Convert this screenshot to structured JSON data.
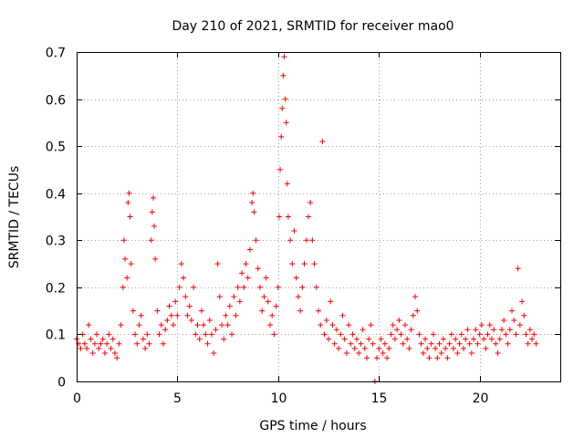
{
  "chart_data": {
    "type": "scatter",
    "title": "Day 210 of 2021, SRMTID for receiver mao0",
    "xlabel": "GPS time / hours",
    "ylabel": "SRMTID / TECUs",
    "xlim": [
      0,
      24
    ],
    "ylim": [
      0,
      0.7
    ],
    "xticks": [
      0,
      5,
      10,
      15,
      20
    ],
    "xtick_labels": [
      "0",
      "5",
      "10",
      "15",
      "20"
    ],
    "yticks": [
      0,
      0.1,
      0.2,
      0.3,
      0.4,
      0.5,
      0.6,
      0.7
    ],
    "ytick_labels": [
      "0",
      "0.1",
      "0.2",
      "0.3",
      "0.4",
      "0.5",
      "0.6",
      "0.7"
    ],
    "grid": true,
    "marker": "+",
    "color": "#ff0000",
    "series": [
      {
        "name": "SRMTID",
        "points": [
          [
            0.0,
            0.09
          ],
          [
            0.1,
            0.08
          ],
          [
            0.2,
            0.07
          ],
          [
            0.3,
            0.1
          ],
          [
            0.4,
            0.08
          ],
          [
            0.5,
            0.07
          ],
          [
            0.6,
            0.12
          ],
          [
            0.7,
            0.09
          ],
          [
            0.8,
            0.06
          ],
          [
            0.9,
            0.08
          ],
          [
            1.0,
            0.1
          ],
          [
            1.1,
            0.07
          ],
          [
            1.2,
            0.08
          ],
          [
            1.3,
            0.09
          ],
          [
            1.4,
            0.06
          ],
          [
            1.5,
            0.08
          ],
          [
            1.6,
            0.1
          ],
          [
            1.7,
            0.07
          ],
          [
            1.8,
            0.09
          ],
          [
            1.9,
            0.06
          ],
          [
            2.0,
            0.05
          ],
          [
            2.1,
            0.08
          ],
          [
            2.2,
            0.12
          ],
          [
            2.3,
            0.2
          ],
          [
            2.35,
            0.3
          ],
          [
            2.4,
            0.26
          ],
          [
            2.5,
            0.22
          ],
          [
            2.55,
            0.38
          ],
          [
            2.6,
            0.4
          ],
          [
            2.65,
            0.35
          ],
          [
            2.7,
            0.25
          ],
          [
            2.8,
            0.15
          ],
          [
            2.9,
            0.1
          ],
          [
            3.0,
            0.08
          ],
          [
            3.1,
            0.12
          ],
          [
            3.2,
            0.14
          ],
          [
            3.3,
            0.09
          ],
          [
            3.4,
            0.07
          ],
          [
            3.5,
            0.1
          ],
          [
            3.6,
            0.08
          ],
          [
            3.7,
            0.3
          ],
          [
            3.75,
            0.36
          ],
          [
            3.8,
            0.39
          ],
          [
            3.85,
            0.33
          ],
          [
            3.9,
            0.26
          ],
          [
            4.0,
            0.15
          ],
          [
            4.1,
            0.1
          ],
          [
            4.2,
            0.12
          ],
          [
            4.3,
            0.08
          ],
          [
            4.4,
            0.11
          ],
          [
            4.5,
            0.13
          ],
          [
            4.6,
            0.16
          ],
          [
            4.7,
            0.14
          ],
          [
            4.8,
            0.12
          ],
          [
            4.9,
            0.17
          ],
          [
            5.0,
            0.14
          ],
          [
            5.1,
            0.2
          ],
          [
            5.2,
            0.25
          ],
          [
            5.3,
            0.22
          ],
          [
            5.4,
            0.18
          ],
          [
            5.5,
            0.14
          ],
          [
            5.6,
            0.16
          ],
          [
            5.7,
            0.13
          ],
          [
            5.8,
            0.2
          ],
          [
            5.9,
            0.1
          ],
          [
            6.0,
            0.12
          ],
          [
            6.1,
            0.09
          ],
          [
            6.2,
            0.15
          ],
          [
            6.3,
            0.12
          ],
          [
            6.4,
            0.1
          ],
          [
            6.5,
            0.08
          ],
          [
            6.6,
            0.13
          ],
          [
            6.7,
            0.1
          ],
          [
            6.8,
            0.06
          ],
          [
            6.9,
            0.11
          ],
          [
            7.0,
            0.25
          ],
          [
            7.1,
            0.18
          ],
          [
            7.2,
            0.12
          ],
          [
            7.3,
            0.09
          ],
          [
            7.4,
            0.14
          ],
          [
            7.5,
            0.12
          ],
          [
            7.6,
            0.16
          ],
          [
            7.7,
            0.1
          ],
          [
            7.8,
            0.18
          ],
          [
            7.9,
            0.14
          ],
          [
            8.0,
            0.2
          ],
          [
            8.1,
            0.17
          ],
          [
            8.2,
            0.23
          ],
          [
            8.3,
            0.2
          ],
          [
            8.4,
            0.25
          ],
          [
            8.5,
            0.22
          ],
          [
            8.6,
            0.28
          ],
          [
            8.7,
            0.38
          ],
          [
            8.75,
            0.4
          ],
          [
            8.8,
            0.36
          ],
          [
            8.9,
            0.3
          ],
          [
            9.0,
            0.24
          ],
          [
            9.1,
            0.2
          ],
          [
            9.2,
            0.15
          ],
          [
            9.3,
            0.18
          ],
          [
            9.4,
            0.22
          ],
          [
            9.5,
            0.17
          ],
          [
            9.6,
            0.12
          ],
          [
            9.7,
            0.14
          ],
          [
            9.8,
            0.1
          ],
          [
            9.9,
            0.16
          ],
          [
            10.0,
            0.2
          ],
          [
            10.05,
            0.35
          ],
          [
            10.1,
            0.45
          ],
          [
            10.15,
            0.52
          ],
          [
            10.2,
            0.58
          ],
          [
            10.25,
            0.65
          ],
          [
            10.3,
            0.69
          ],
          [
            10.35,
            0.6
          ],
          [
            10.4,
            0.55
          ],
          [
            10.45,
            0.42
          ],
          [
            10.5,
            0.35
          ],
          [
            10.6,
            0.3
          ],
          [
            10.7,
            0.25
          ],
          [
            10.8,
            0.32
          ],
          [
            10.9,
            0.22
          ],
          [
            11.0,
            0.18
          ],
          [
            11.1,
            0.15
          ],
          [
            11.2,
            0.2
          ],
          [
            11.3,
            0.25
          ],
          [
            11.4,
            0.3
          ],
          [
            11.5,
            0.35
          ],
          [
            11.6,
            0.38
          ],
          [
            11.7,
            0.3
          ],
          [
            11.8,
            0.25
          ],
          [
            11.9,
            0.2
          ],
          [
            12.0,
            0.15
          ],
          [
            12.1,
            0.12
          ],
          [
            12.2,
            0.51
          ],
          [
            12.3,
            0.1
          ],
          [
            12.4,
            0.13
          ],
          [
            12.5,
            0.09
          ],
          [
            12.6,
            0.17
          ],
          [
            12.7,
            0.12
          ],
          [
            12.8,
            0.08
          ],
          [
            12.9,
            0.11
          ],
          [
            13.0,
            0.07
          ],
          [
            13.1,
            0.1
          ],
          [
            13.2,
            0.14
          ],
          [
            13.3,
            0.09
          ],
          [
            13.4,
            0.06
          ],
          [
            13.5,
            0.12
          ],
          [
            13.6,
            0.08
          ],
          [
            13.7,
            0.1
          ],
          [
            13.8,
            0.07
          ],
          [
            13.9,
            0.09
          ],
          [
            14.0,
            0.06
          ],
          [
            14.1,
            0.08
          ],
          [
            14.2,
            0.11
          ],
          [
            14.3,
            0.07
          ],
          [
            14.4,
            0.05
          ],
          [
            14.5,
            0.09
          ],
          [
            14.6,
            0.12
          ],
          [
            14.7,
            0.08
          ],
          [
            14.8,
            0.0
          ],
          [
            14.9,
            0.05
          ],
          [
            15.0,
            0.07
          ],
          [
            15.1,
            0.09
          ],
          [
            15.2,
            0.06
          ],
          [
            15.3,
            0.08
          ],
          [
            15.4,
            0.05
          ],
          [
            15.5,
            0.07
          ],
          [
            15.6,
            0.1
          ],
          [
            15.7,
            0.12
          ],
          [
            15.8,
            0.09
          ],
          [
            15.9,
            0.11
          ],
          [
            16.0,
            0.13
          ],
          [
            16.1,
            0.1
          ],
          [
            16.2,
            0.08
          ],
          [
            16.3,
            0.12
          ],
          [
            16.4,
            0.09
          ],
          [
            16.5,
            0.07
          ],
          [
            16.6,
            0.11
          ],
          [
            16.7,
            0.14
          ],
          [
            16.8,
            0.18
          ],
          [
            16.9,
            0.15
          ],
          [
            17.0,
            0.1
          ],
          [
            17.1,
            0.08
          ],
          [
            17.2,
            0.06
          ],
          [
            17.3,
            0.09
          ],
          [
            17.4,
            0.07
          ],
          [
            17.5,
            0.05
          ],
          [
            17.6,
            0.08
          ],
          [
            17.7,
            0.1
          ],
          [
            17.8,
            0.07
          ],
          [
            17.9,
            0.05
          ],
          [
            18.0,
            0.08
          ],
          [
            18.1,
            0.06
          ],
          [
            18.2,
            0.09
          ],
          [
            18.3,
            0.07
          ],
          [
            18.4,
            0.05
          ],
          [
            18.5,
            0.08
          ],
          [
            18.6,
            0.1
          ],
          [
            18.7,
            0.07
          ],
          [
            18.8,
            0.09
          ],
          [
            18.9,
            0.06
          ],
          [
            19.0,
            0.08
          ],
          [
            19.1,
            0.1
          ],
          [
            19.2,
            0.07
          ],
          [
            19.3,
            0.09
          ],
          [
            19.4,
            0.11
          ],
          [
            19.5,
            0.08
          ],
          [
            19.6,
            0.06
          ],
          [
            19.7,
            0.09
          ],
          [
            19.8,
            0.11
          ],
          [
            19.9,
            0.08
          ],
          [
            20.0,
            0.1
          ],
          [
            20.1,
            0.12
          ],
          [
            20.2,
            0.09
          ],
          [
            20.3,
            0.07
          ],
          [
            20.4,
            0.1
          ],
          [
            20.5,
            0.12
          ],
          [
            20.6,
            0.09
          ],
          [
            20.7,
            0.11
          ],
          [
            20.8,
            0.08
          ],
          [
            20.9,
            0.06
          ],
          [
            21.0,
            0.09
          ],
          [
            21.1,
            0.11
          ],
          [
            21.2,
            0.13
          ],
          [
            21.3,
            0.1
          ],
          [
            21.4,
            0.08
          ],
          [
            21.5,
            0.11
          ],
          [
            21.6,
            0.15
          ],
          [
            21.7,
            0.13
          ],
          [
            21.8,
            0.1
          ],
          [
            21.9,
            0.24
          ],
          [
            22.0,
            0.12
          ],
          [
            22.1,
            0.17
          ],
          [
            22.2,
            0.14
          ],
          [
            22.3,
            0.1
          ],
          [
            22.4,
            0.08
          ],
          [
            22.5,
            0.11
          ],
          [
            22.6,
            0.09
          ],
          [
            22.7,
            0.1
          ],
          [
            22.8,
            0.08
          ]
        ]
      }
    ]
  }
}
